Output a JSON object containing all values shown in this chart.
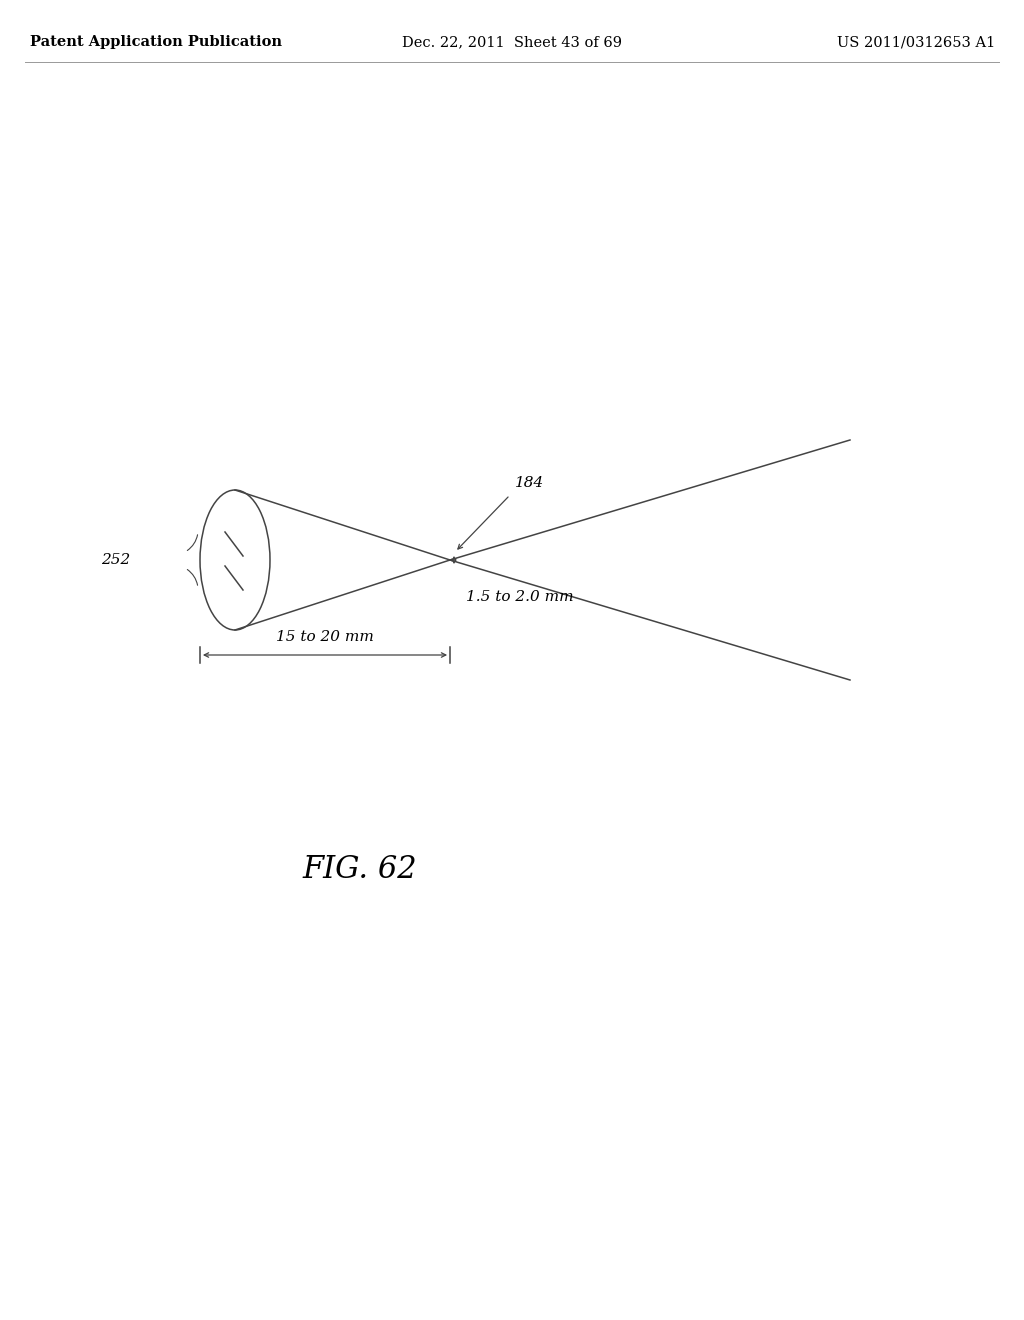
{
  "bg_color": "#ffffff",
  "header_left": "Patent Application Publication",
  "header_mid": "Dec. 22, 2011  Sheet 43 of 69",
  "header_right": "US 2011/0312653 A1",
  "fig_label": "FIG. 62",
  "label_252": "252",
  "label_184": "184",
  "label_dim1": "1.5 to 2.0 mm",
  "label_dim2": "15 to 20 mm",
  "line_color": "#444444",
  "text_color": "#000000",
  "header_fontsize": 10.5,
  "fig_label_fontsize": 22,
  "annotation_fontsize": 11
}
